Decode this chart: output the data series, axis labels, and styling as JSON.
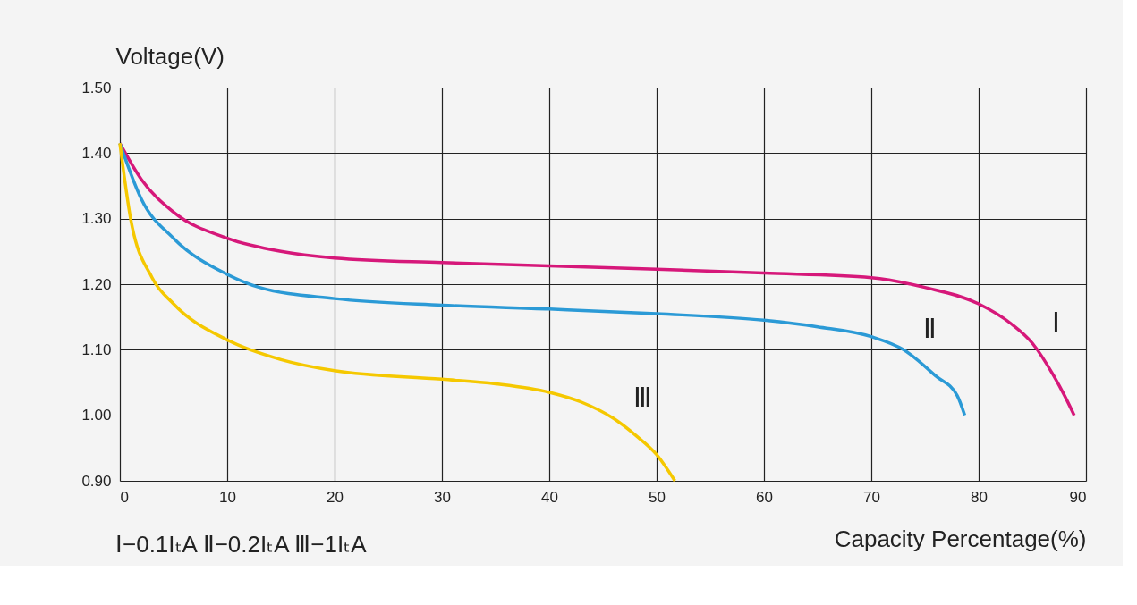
{
  "chart_data": {
    "type": "line",
    "xlabel": "Capacity Percentage(%)",
    "ylabel": "Voltage(V)",
    "xlim": [
      0,
      90
    ],
    "xticks": [
      0,
      10,
      20,
      30,
      40,
      50,
      60,
      70,
      80,
      90
    ],
    "ylim": [
      0.9,
      1.5
    ],
    "yticks": [
      {
        "value": 0.9,
        "label": "0.90"
      },
      {
        "value": 1.0,
        "label": "1.00"
      },
      {
        "value": 1.1,
        "label": "1.10"
      },
      {
        "value": 1.2,
        "label": "1.20"
      },
      {
        "value": 1.3,
        "label": "1.30"
      },
      {
        "value": 1.4,
        "label": "1.40"
      },
      {
        "value": 1.5,
        "label": "1.50"
      }
    ],
    "grid": true,
    "legend": false,
    "marker": "none",
    "line_style": "solid",
    "annotations": [
      "Ⅰ−0.1IₜA  Ⅱ−0.2IₜA  Ⅲ−1IₜA"
    ],
    "series": [
      {
        "name": "Ⅰ",
        "color": "#d6187a",
        "x": [
          0,
          2,
          5,
          10,
          15,
          20,
          30,
          40,
          50,
          60,
          70,
          75,
          80,
          83,
          85,
          87,
          88,
          88.9
        ],
        "values": [
          1.415,
          1.36,
          1.31,
          1.27,
          1.25,
          1.24,
          1.233,
          1.228,
          1.223,
          1.217,
          1.21,
          1.195,
          1.17,
          1.14,
          1.11,
          1.06,
          1.03,
          1.0
        ]
      },
      {
        "name": "Ⅱ",
        "color": "#2b9ad6",
        "x": [
          0,
          2,
          5,
          10,
          13,
          20,
          30,
          40,
          50,
          60,
          65,
          70,
          73,
          76,
          78,
          78.7
        ],
        "values": [
          1.415,
          1.33,
          1.27,
          1.215,
          1.195,
          1.178,
          1.168,
          1.162,
          1.155,
          1.145,
          1.135,
          1.12,
          1.1,
          1.06,
          1.03,
          1.0
        ]
      },
      {
        "name": "Ⅲ",
        "color": "#f5c800",
        "x": [
          0,
          1,
          3,
          5,
          10,
          15,
          20,
          30,
          35,
          40,
          43,
          46,
          48,
          50,
          51.7
        ],
        "values": [
          1.415,
          1.3,
          1.21,
          1.17,
          1.115,
          1.085,
          1.068,
          1.055,
          1.048,
          1.035,
          1.02,
          0.995,
          0.97,
          0.94,
          0.9
        ]
      }
    ]
  }
}
